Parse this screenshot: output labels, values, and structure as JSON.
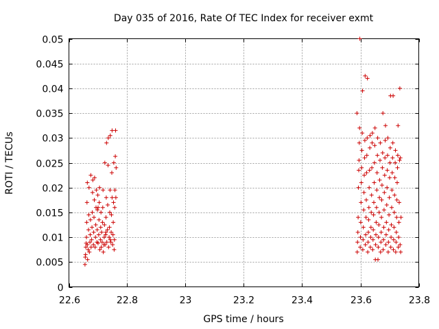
{
  "chart_data": {
    "type": "scatter",
    "title": "Day 035 of 2016, Rate Of TEC Index for receiver exmt",
    "xlabel": "GPS time / hours",
    "ylabel": "ROTI / TECUs",
    "xlim": [
      22.6,
      23.8
    ],
    "ylim": [
      0,
      0.05
    ],
    "xticks": [
      22.6,
      22.8,
      23.0,
      23.2,
      23.4,
      23.6,
      23.8
    ],
    "xtick_labels": [
      "22.6",
      "22.8",
      "23",
      "23.2",
      "23.4",
      "23.6",
      "23.8"
    ],
    "yticks": [
      0,
      0.005,
      0.01,
      0.015,
      0.02,
      0.025,
      0.03,
      0.035,
      0.04,
      0.045,
      0.05
    ],
    "ytick_labels": [
      "0",
      "0.005",
      "0.01",
      "0.015",
      "0.02",
      "0.025",
      "0.03",
      "0.035",
      "0.04",
      "0.045",
      "0.05"
    ],
    "grid": true,
    "marker": "+",
    "color": "#cc0000",
    "series": [
      {
        "name": "ROTI",
        "points": [
          [
            22.655,
            0.0045
          ],
          [
            22.656,
            0.006
          ],
          [
            22.657,
            0.0065
          ],
          [
            22.658,
            0.008
          ],
          [
            22.659,
            0.0088
          ],
          [
            22.66,
            0.01
          ],
          [
            22.661,
            0.013
          ],
          [
            22.662,
            0.017
          ],
          [
            22.663,
            0.021
          ],
          [
            22.664,
            0.0055
          ],
          [
            22.666,
            0.0075
          ],
          [
            22.667,
            0.0115
          ],
          [
            22.668,
            0.0145
          ],
          [
            22.669,
            0.02
          ],
          [
            22.67,
            0.007
          ],
          [
            22.672,
            0.009
          ],
          [
            22.673,
            0.0105
          ],
          [
            22.674,
            0.0135
          ],
          [
            22.675,
            0.0225
          ],
          [
            22.676,
            0.008
          ],
          [
            22.678,
            0.0095
          ],
          [
            22.679,
            0.012
          ],
          [
            22.68,
            0.015
          ],
          [
            22.681,
            0.019
          ],
          [
            22.682,
            0.0215
          ],
          [
            22.684,
            0.0085
          ],
          [
            22.685,
            0.011
          ],
          [
            22.686,
            0.014
          ],
          [
            22.687,
            0.0175
          ],
          [
            22.688,
            0.022
          ],
          [
            22.69,
            0.008
          ],
          [
            22.691,
            0.01
          ],
          [
            22.692,
            0.0125
          ],
          [
            22.693,
            0.016
          ],
          [
            22.694,
            0.0195
          ],
          [
            22.696,
            0.009
          ],
          [
            22.697,
            0.0115
          ],
          [
            22.698,
            0.0155
          ],
          [
            22.699,
            0.0185
          ],
          [
            22.7,
            0.0088
          ],
          [
            22.702,
            0.0105
          ],
          [
            22.703,
            0.0135
          ],
          [
            22.704,
            0.017
          ],
          [
            22.705,
            0.02
          ],
          [
            22.706,
            0.0075
          ],
          [
            22.708,
            0.0095
          ],
          [
            22.709,
            0.012
          ],
          [
            22.71,
            0.015
          ],
          [
            22.711,
            0.008
          ],
          [
            22.712,
            0.011
          ],
          [
            22.714,
            0.009
          ],
          [
            22.715,
            0.013
          ],
          [
            22.716,
            0.016
          ],
          [
            22.717,
            0.0195
          ],
          [
            22.718,
            0.007
          ],
          [
            22.72,
            0.0085
          ],
          [
            22.721,
            0.01
          ],
          [
            22.722,
            0.0125
          ],
          [
            22.723,
            0.025
          ],
          [
            22.724,
            0.0085
          ],
          [
            22.726,
            0.0105
          ],
          [
            22.727,
            0.014
          ],
          [
            22.728,
            0.018
          ],
          [
            22.729,
            0.029
          ],
          [
            22.73,
            0.009
          ],
          [
            22.732,
            0.0115
          ],
          [
            22.733,
            0.0165
          ],
          [
            22.734,
            0.0245
          ],
          [
            22.735,
            0.03
          ],
          [
            22.736,
            0.008
          ],
          [
            22.738,
            0.01
          ],
          [
            22.739,
            0.012
          ],
          [
            22.74,
            0.015
          ],
          [
            22.741,
            0.0195
          ],
          [
            22.742,
            0.0305
          ],
          [
            22.744,
            0.009
          ],
          [
            22.745,
            0.011
          ],
          [
            22.746,
            0.0145
          ],
          [
            22.747,
            0.023
          ],
          [
            22.748,
            0.0315
          ],
          [
            22.75,
            0.0085
          ],
          [
            22.751,
            0.0105
          ],
          [
            22.752,
            0.013
          ],
          [
            22.753,
            0.017
          ],
          [
            22.754,
            0.025
          ],
          [
            22.755,
            0.0075
          ],
          [
            22.756,
            0.0095
          ],
          [
            22.757,
            0.016
          ],
          [
            22.758,
            0.0195
          ],
          [
            22.759,
            0.0263
          ],
          [
            22.76,
            0.0315
          ],
          [
            22.761,
            0.018
          ],
          [
            22.762,
            0.024
          ],
          [
            22.663,
            0.0085
          ],
          [
            22.7,
            0.016
          ],
          [
            22.727,
            0.011
          ],
          [
            22.742,
            0.0095
          ],
          [
            22.748,
            0.018
          ],
          [
            23.588,
            0.035
          ],
          [
            23.589,
            0.007
          ],
          [
            23.59,
            0.009
          ],
          [
            23.591,
            0.011
          ],
          [
            23.592,
            0.014
          ],
          [
            23.593,
            0.02
          ],
          [
            23.594,
            0.0235
          ],
          [
            23.595,
            0.0255
          ],
          [
            23.596,
            0.029
          ],
          [
            23.597,
            0.032
          ],
          [
            23.598,
            0.05
          ],
          [
            23.599,
            0.008
          ],
          [
            23.6,
            0.01
          ],
          [
            23.601,
            0.013
          ],
          [
            23.602,
            0.017
          ],
          [
            23.603,
            0.021
          ],
          [
            23.604,
            0.024
          ],
          [
            23.605,
            0.0275
          ],
          [
            23.606,
            0.031
          ],
          [
            23.607,
            0.0395
          ],
          [
            23.608,
            0.0075
          ],
          [
            23.609,
            0.0095
          ],
          [
            23.61,
            0.012
          ],
          [
            23.611,
            0.0155
          ],
          [
            23.612,
            0.019
          ],
          [
            23.613,
            0.0225
          ],
          [
            23.614,
            0.026
          ],
          [
            23.615,
            0.0295
          ],
          [
            23.616,
            0.0425
          ],
          [
            23.617,
            0.0085
          ],
          [
            23.618,
            0.0105
          ],
          [
            23.619,
            0.014
          ],
          [
            23.62,
            0.0175
          ],
          [
            23.621,
            0.023
          ],
          [
            23.622,
            0.0265
          ],
          [
            23.623,
            0.03
          ],
          [
            23.624,
            0.042
          ],
          [
            23.625,
            0.007
          ],
          [
            23.626,
            0.009
          ],
          [
            23.627,
            0.011
          ],
          [
            23.628,
            0.0135
          ],
          [
            23.629,
            0.016
          ],
          [
            23.63,
            0.02
          ],
          [
            23.631,
            0.0235
          ],
          [
            23.632,
            0.028
          ],
          [
            23.633,
            0.0305
          ],
          [
            23.634,
            0.008
          ],
          [
            23.635,
            0.01
          ],
          [
            23.636,
            0.012
          ],
          [
            23.637,
            0.015
          ],
          [
            23.638,
            0.0185
          ],
          [
            23.639,
            0.024
          ],
          [
            23.64,
            0.029
          ],
          [
            23.641,
            0.031
          ],
          [
            23.642,
            0.0075
          ],
          [
            23.643,
            0.0095
          ],
          [
            23.644,
            0.0115
          ],
          [
            23.645,
            0.0145
          ],
          [
            23.646,
            0.017
          ],
          [
            23.647,
            0.021
          ],
          [
            23.648,
            0.025
          ],
          [
            23.649,
            0.0285
          ],
          [
            23.65,
            0.032
          ],
          [
            23.651,
            0.0055
          ],
          [
            23.652,
            0.0085
          ],
          [
            23.653,
            0.0105
          ],
          [
            23.654,
            0.013
          ],
          [
            23.655,
            0.016
          ],
          [
            23.656,
            0.0195
          ],
          [
            23.657,
            0.023
          ],
          [
            23.658,
            0.0265
          ],
          [
            23.659,
            0.03
          ],
          [
            23.66,
            0.0055
          ],
          [
            23.661,
            0.008
          ],
          [
            23.662,
            0.01
          ],
          [
            23.663,
            0.0125
          ],
          [
            23.664,
            0.015
          ],
          [
            23.665,
            0.018
          ],
          [
            23.666,
            0.0215
          ],
          [
            23.667,
            0.0255
          ],
          [
            23.668,
            0.029
          ],
          [
            23.669,
            0.007
          ],
          [
            23.67,
            0.009
          ],
          [
            23.671,
            0.011
          ],
          [
            23.672,
            0.014
          ],
          [
            23.673,
            0.0175
          ],
          [
            23.674,
            0.0205
          ],
          [
            23.675,
            0.024
          ],
          [
            23.676,
            0.027
          ],
          [
            23.677,
            0.035
          ],
          [
            23.678,
            0.0075
          ],
          [
            23.679,
            0.0095
          ],
          [
            23.68,
            0.012
          ],
          [
            23.681,
            0.0155
          ],
          [
            23.682,
            0.019
          ],
          [
            23.683,
            0.0225
          ],
          [
            23.684,
            0.026
          ],
          [
            23.685,
            0.0295
          ],
          [
            23.686,
            0.0325
          ],
          [
            23.687,
            0.0085
          ],
          [
            23.688,
            0.0105
          ],
          [
            23.689,
            0.013
          ],
          [
            23.69,
            0.0165
          ],
          [
            23.691,
            0.02
          ],
          [
            23.692,
            0.0235
          ],
          [
            23.693,
            0.0265
          ],
          [
            23.694,
            0.03
          ],
          [
            23.695,
            0.007
          ],
          [
            23.696,
            0.009
          ],
          [
            23.697,
            0.0115
          ],
          [
            23.698,
            0.0145
          ],
          [
            23.699,
            0.018
          ],
          [
            23.7,
            0.022
          ],
          [
            23.701,
            0.025
          ],
          [
            23.702,
            0.028
          ],
          [
            23.703,
            0.0385
          ],
          [
            23.704,
            0.008
          ],
          [
            23.705,
            0.01
          ],
          [
            23.706,
            0.0125
          ],
          [
            23.707,
            0.016
          ],
          [
            23.708,
            0.0195
          ],
          [
            23.709,
            0.023
          ],
          [
            23.71,
            0.026
          ],
          [
            23.711,
            0.029
          ],
          [
            23.712,
            0.0385
          ],
          [
            23.713,
            0.0075
          ],
          [
            23.714,
            0.0095
          ],
          [
            23.715,
            0.012
          ],
          [
            23.716,
            0.015
          ],
          [
            23.717,
            0.0185
          ],
          [
            23.718,
            0.022
          ],
          [
            23.719,
            0.025
          ],
          [
            23.72,
            0.0275
          ],
          [
            23.721,
            0.007
          ],
          [
            23.722,
            0.009
          ],
          [
            23.723,
            0.011
          ],
          [
            23.724,
            0.014
          ],
          [
            23.725,
            0.0175
          ],
          [
            23.726,
            0.021
          ],
          [
            23.727,
            0.024
          ],
          [
            23.728,
            0.0265
          ],
          [
            23.729,
            0.0325
          ],
          [
            23.73,
            0.008
          ],
          [
            23.731,
            0.01
          ],
          [
            23.732,
            0.013
          ],
          [
            23.733,
            0.017
          ],
          [
            23.734,
            0.0255
          ],
          [
            23.735,
            0.04
          ],
          [
            23.736,
            0.0085
          ],
          [
            23.737,
            0.026
          ],
          [
            23.738,
            0.007
          ],
          [
            23.739,
            0.014
          ]
        ]
      }
    ]
  }
}
